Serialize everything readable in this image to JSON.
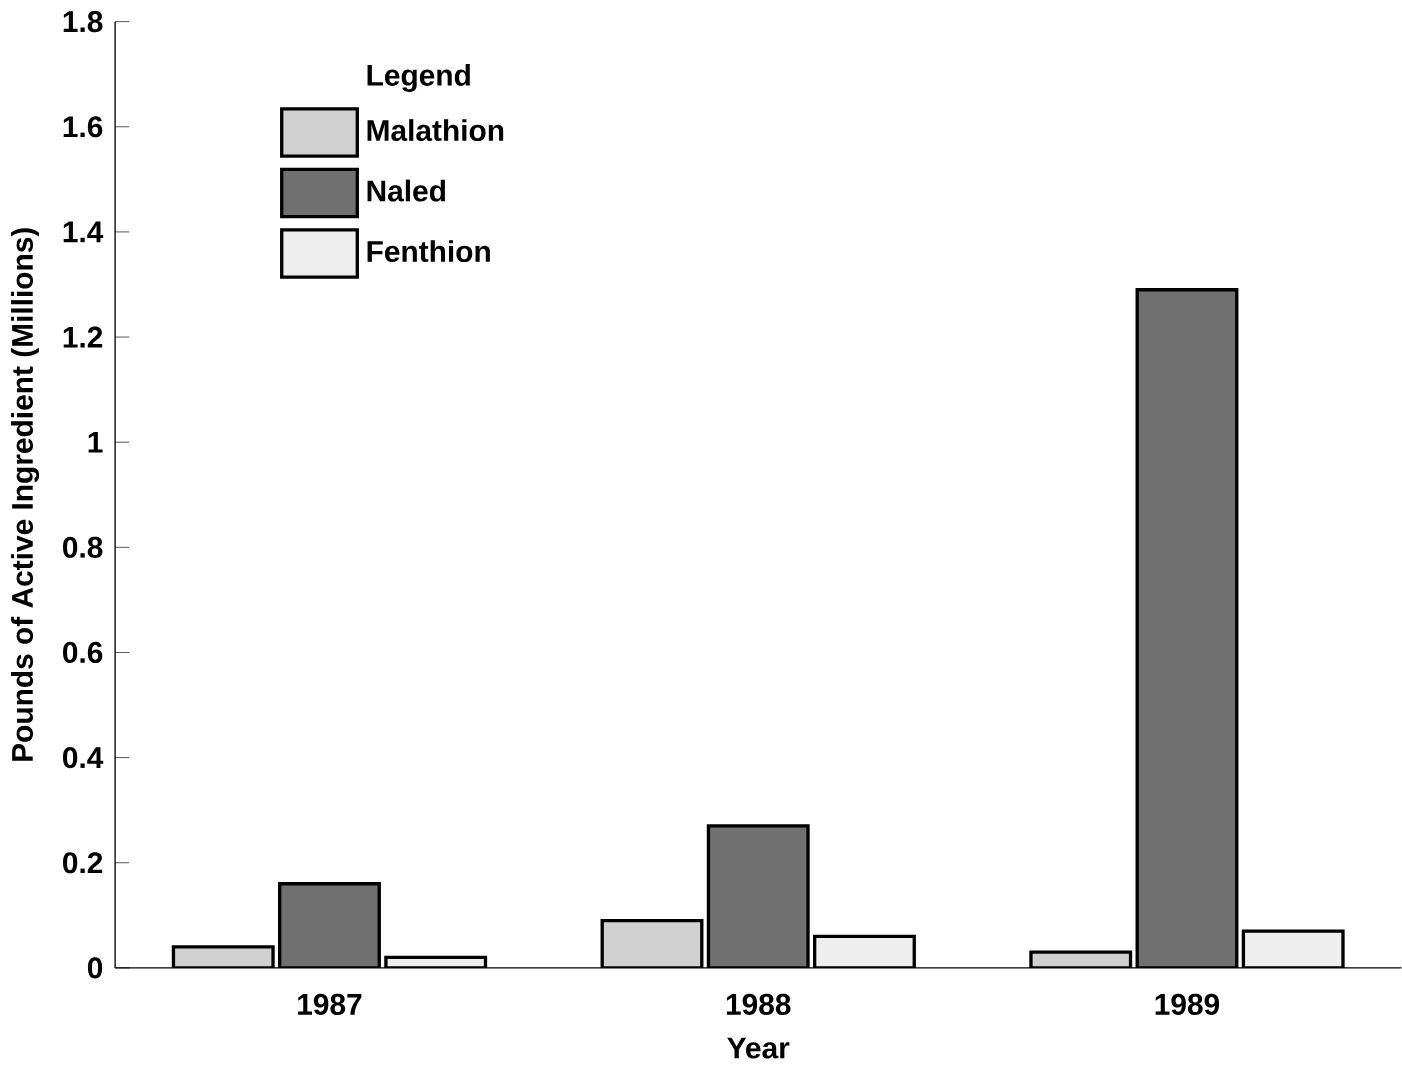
{
  "chart_data": {
    "type": "bar",
    "xlabel": "Year",
    "ylabel": "Pounds of Active Ingredient (Millions)",
    "legend_title": "Legend",
    "categories": [
      "1987",
      "1988",
      "1989"
    ],
    "series": [
      {
        "name": "Malathion",
        "color": "#d0d0d0",
        "values": [
          0.04,
          0.09,
          0.03
        ]
      },
      {
        "name": "Naled",
        "color": "#707070",
        "values": [
          0.16,
          0.27,
          1.29
        ]
      },
      {
        "name": "Fenthion",
        "color": "#eeeeee",
        "values": [
          0.02,
          0.06,
          0.07
        ]
      }
    ],
    "ylim": [
      0,
      1.8
    ],
    "yticks": [
      0,
      {
        "value": 0.2,
        "label": "0.2"
      },
      {
        "value": 0.4,
        "label": "0.4"
      },
      {
        "value": 0.6,
        "label": "0.6"
      },
      {
        "value": 0.8,
        "label": "0.8"
      },
      1,
      {
        "value": 1.2,
        "label": "1.2"
      },
      {
        "value": 1.4,
        "label": "1.4"
      },
      {
        "value": 1.6,
        "label": "1.6"
      },
      {
        "value": 1.8,
        "label": "1.8"
      }
    ],
    "legend": "top left"
  }
}
